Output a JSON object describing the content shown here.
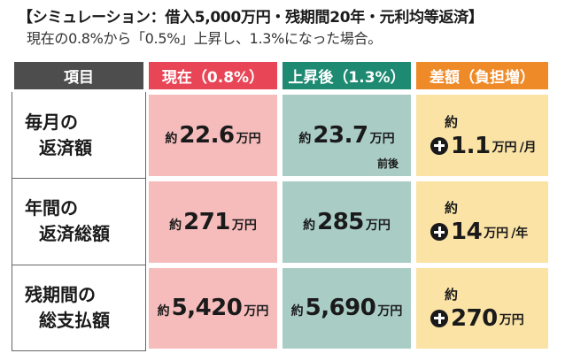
{
  "header": {
    "title": "【シミュレーション：借入5,000万円・残期間20年・元利均等返済】",
    "subtitle": "現在の0.8%から「0.5%」上昇し、1.3%になった場合。"
  },
  "table": {
    "headers": {
      "item": "項目",
      "now": "現在（0.8%）",
      "after": "上昇後（1.3%）",
      "diff": "差額（負担増）"
    },
    "rows": [
      {
        "label_1": "毎月の",
        "label_2": "返済額",
        "now": {
          "pre": "約",
          "num": "22.6",
          "unit": "万円"
        },
        "after": {
          "pre": "約",
          "num": "23.7",
          "unit": "万円",
          "note": "前後"
        },
        "diff": {
          "pre": "約",
          "num": "1.1",
          "unit": "万円",
          "per": "/月"
        }
      },
      {
        "label_1": "年間の",
        "label_2": "返済総額",
        "now": {
          "pre": "約",
          "num": "271",
          "unit": "万円"
        },
        "after": {
          "pre": "約",
          "num": "285",
          "unit": "万円"
        },
        "diff": {
          "pre": "約",
          "num": "14",
          "unit": "万円",
          "per": "/年"
        }
      },
      {
        "label_1": "残期間の",
        "label_2": "総支払額",
        "now": {
          "pre": "約",
          "num": "5,420",
          "unit": "万円"
        },
        "after": {
          "pre": "約",
          "num": "5,690",
          "unit": "万円"
        },
        "diff": {
          "pre": "約",
          "num": "270",
          "unit": "万円"
        }
      }
    ]
  },
  "colors": {
    "header_item": "#4d4d4d",
    "header_now": "#e84656",
    "header_after": "#1f8a72",
    "header_diff": "#ef8a28",
    "cell_now": "#f6bcbc",
    "cell_after": "#a9cdc5",
    "cell_diff": "#fbe3a6"
  },
  "icons": {
    "increase": "plus-circle-icon"
  }
}
